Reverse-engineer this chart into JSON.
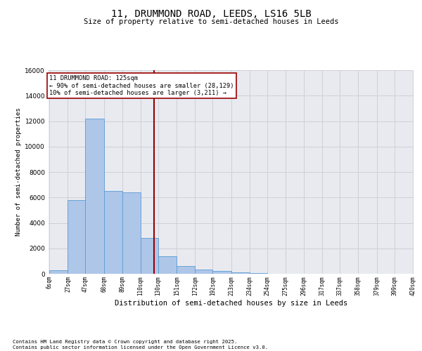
{
  "title1": "11, DRUMMOND ROAD, LEEDS, LS16 5LB",
  "title2": "Size of property relative to semi-detached houses in Leeds",
  "xlabel": "Distribution of semi-detached houses by size in Leeds",
  "ylabel": "Number of semi-detached properties",
  "footnote": "Contains HM Land Registry data © Crown copyright and database right 2025.\nContains public sector information licensed under the Open Government Licence v3.0.",
  "property_size": 125,
  "property_label": "11 DRUMMOND ROAD: 125sqm",
  "smaller_pct": 90,
  "smaller_count": 28129,
  "larger_pct": 10,
  "larger_count": 3211,
  "bin_edges": [
    6,
    27,
    47,
    68,
    89,
    110,
    130,
    151,
    172,
    192,
    213,
    234,
    254,
    275,
    296,
    317,
    337,
    358,
    379,
    399,
    420
  ],
  "bin_labels": [
    "6sqm",
    "27sqm",
    "47sqm",
    "68sqm",
    "89sqm",
    "110sqm",
    "130sqm",
    "151sqm",
    "172sqm",
    "192sqm",
    "213sqm",
    "234sqm",
    "254sqm",
    "275sqm",
    "296sqm",
    "317sqm",
    "337sqm",
    "358sqm",
    "379sqm",
    "399sqm",
    "420sqm"
  ],
  "bar_heights": [
    300,
    5800,
    12200,
    6500,
    6400,
    2800,
    1400,
    600,
    350,
    200,
    100,
    50,
    20,
    5,
    2,
    1,
    0,
    0,
    0,
    0
  ],
  "bar_color": "#aec6e8",
  "bar_edge_color": "#5b9bd5",
  "grid_color": "#d0d0d8",
  "bg_color": "#e8eaf0",
  "red_line_color": "#990000",
  "box_edge_color": "#990000",
  "ylim": [
    0,
    16000
  ],
  "yticks": [
    0,
    2000,
    4000,
    6000,
    8000,
    10000,
    12000,
    14000,
    16000
  ]
}
